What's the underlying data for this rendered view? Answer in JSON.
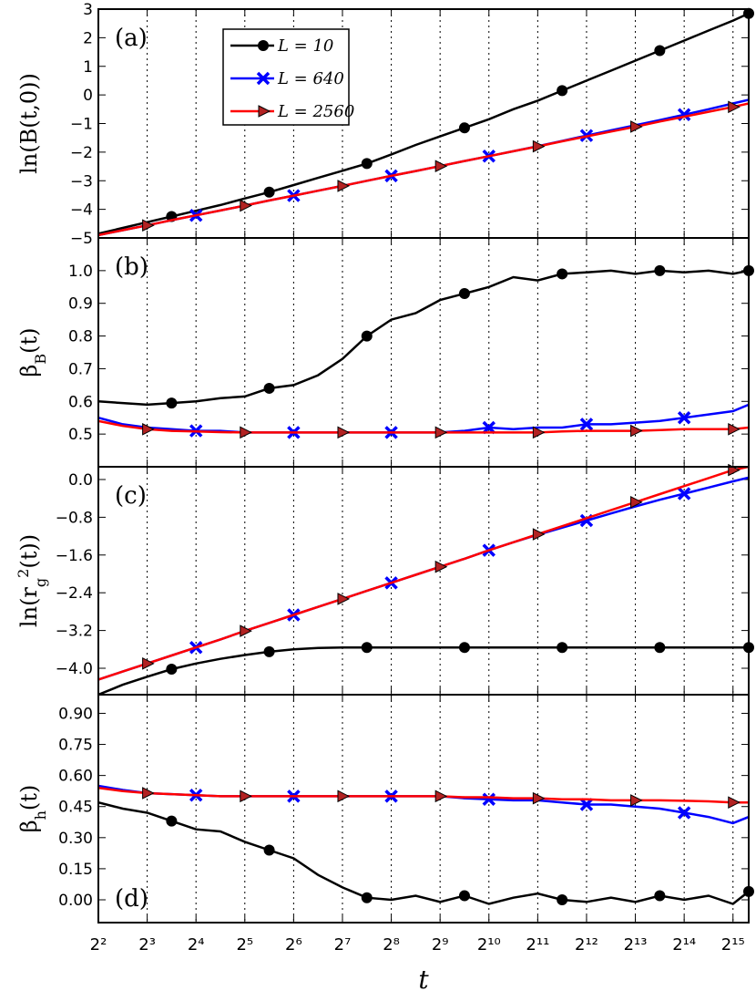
{
  "chart_data": [
    {
      "type": "line",
      "panel_label": "(a)",
      "panel_label_loc": "upper left",
      "ylabel": [
        {
          "text": "ln(B(t,0))"
        }
      ],
      "xscale": "log",
      "xlim": [
        4,
        40960
      ],
      "xticks": [
        4,
        8,
        16,
        32,
        64,
        128,
        256,
        512,
        1024,
        2048,
        4096,
        8192,
        16384,
        32768
      ],
      "grid": "x",
      "ylim": [
        -5,
        3
      ],
      "yticks": [
        {
          "value": -5,
          "label": "−5"
        },
        {
          "value": -4,
          "label": "−4"
        },
        {
          "value": -3,
          "label": "−3"
        },
        {
          "value": -2,
          "label": "−2"
        },
        {
          "value": -1,
          "label": "−1"
        },
        0,
        1,
        2,
        3
      ],
      "legend": "upper left",
      "x": [
        4,
        5.66,
        8,
        11.31,
        16,
        22.63,
        32,
        45.25,
        64,
        90.51,
        128,
        181,
        256,
        362,
        512,
        724,
        1024,
        1448,
        2048,
        2896,
        4096,
        5793,
        8192,
        11585,
        16384,
        23170,
        32768,
        40960
      ],
      "series": [
        {
          "name": "L = 10",
          "color": "#000000",
          "marker": "circle",
          "markevery": [
            3,
            4
          ],
          "values": [
            -4.85,
            -4.65,
            -4.45,
            -4.25,
            -4.05,
            -3.85,
            -3.62,
            -3.4,
            -3.15,
            -2.9,
            -2.65,
            -2.4,
            -2.08,
            -1.75,
            -1.45,
            -1.15,
            -0.85,
            -0.5,
            -0.2,
            0.15,
            0.5,
            0.85,
            1.2,
            1.55,
            1.9,
            2.25,
            2.6,
            2.85
          ]
        },
        {
          "name": "L = 640",
          "color": "#0000ff",
          "marker": "x",
          "markevery": [
            4,
            4
          ],
          "values": [
            -4.9,
            -4.73,
            -4.56,
            -4.38,
            -4.21,
            -4.04,
            -3.87,
            -3.69,
            -3.52,
            -3.35,
            -3.18,
            -3.0,
            -2.83,
            -2.66,
            -2.49,
            -2.31,
            -2.14,
            -1.97,
            -1.79,
            -1.61,
            -1.42,
            -1.24,
            -1.06,
            -0.88,
            -0.69,
            -0.5,
            -0.3,
            -0.17
          ]
        },
        {
          "name": "L = 2560",
          "color": "#ff0000",
          "marker": "triangle",
          "marker_color": "#b22222",
          "markevery": [
            2,
            4
          ],
          "values": [
            -4.9,
            -4.73,
            -4.56,
            -4.38,
            -4.21,
            -4.04,
            -3.87,
            -3.69,
            -3.52,
            -3.35,
            -3.18,
            -3.0,
            -2.83,
            -2.66,
            -2.49,
            -2.31,
            -2.14,
            -1.97,
            -1.8,
            -1.62,
            -1.45,
            -1.28,
            -1.11,
            -0.93,
            -0.76,
            -0.59,
            -0.42,
            -0.3
          ]
        }
      ]
    },
    {
      "type": "line",
      "panel_label": "(b)",
      "panel_label_loc": "upper left",
      "ylabel": [
        {
          "text": "β"
        },
        {
          "text": "B",
          "sub": true
        },
        {
          "text": "(t)"
        }
      ],
      "xscale": "log",
      "xlim": [
        4,
        40960
      ],
      "xticks": [
        4,
        8,
        16,
        32,
        64,
        128,
        256,
        512,
        1024,
        2048,
        4096,
        8192,
        16384,
        32768
      ],
      "grid": "x",
      "ylim": [
        0.4,
        1.1
      ],
      "yticks": [
        0.5,
        0.6,
        0.7,
        0.8,
        0.9,
        {
          "value": 1.0,
          "label": "1.0"
        }
      ],
      "x": [
        4,
        5.66,
        8,
        11.31,
        16,
        22.63,
        32,
        45.25,
        64,
        90.51,
        128,
        181,
        256,
        362,
        512,
        724,
        1024,
        1448,
        2048,
        2896,
        4096,
        5793,
        8192,
        11585,
        16384,
        23170,
        32768,
        40960
      ],
      "series": [
        {
          "name": "L = 10",
          "color": "#000000",
          "marker": "circle",
          "markevery": [
            3,
            4
          ],
          "values": [
            0.6,
            0.595,
            0.59,
            0.595,
            0.6,
            0.61,
            0.615,
            0.64,
            0.65,
            0.68,
            0.73,
            0.8,
            0.85,
            0.87,
            0.91,
            0.93,
            0.95,
            0.98,
            0.97,
            0.99,
            0.995,
            1.0,
            0.99,
            1.0,
            0.995,
            1.0,
            0.99,
            1.0
          ]
        },
        {
          "name": "L = 640",
          "color": "#0000ff",
          "marker": "x",
          "markevery": [
            4,
            4
          ],
          "values": [
            0.55,
            0.53,
            0.52,
            0.515,
            0.51,
            0.51,
            0.505,
            0.505,
            0.505,
            0.505,
            0.505,
            0.505,
            0.505,
            0.505,
            0.505,
            0.51,
            0.52,
            0.515,
            0.52,
            0.52,
            0.53,
            0.53,
            0.535,
            0.54,
            0.55,
            0.56,
            0.57,
            0.59
          ]
        },
        {
          "name": "L = 2560",
          "color": "#ff0000",
          "marker": "triangle",
          "marker_color": "#b22222",
          "markevery": [
            2,
            4
          ],
          "values": [
            0.54,
            0.525,
            0.515,
            0.51,
            0.508,
            0.506,
            0.505,
            0.505,
            0.505,
            0.505,
            0.505,
            0.505,
            0.505,
            0.505,
            0.505,
            0.505,
            0.505,
            0.505,
            0.505,
            0.508,
            0.51,
            0.51,
            0.51,
            0.512,
            0.515,
            0.515,
            0.515,
            0.52
          ]
        }
      ]
    },
    {
      "type": "line",
      "panel_label": "(c)",
      "panel_label_loc": "upper left",
      "ylabel": [
        {
          "text": "ln(r"
        },
        {
          "text": "g",
          "sub": true
        },
        {
          "text": "2",
          "sup": true
        },
        {
          "text": "(t))"
        }
      ],
      "xscale": "log",
      "xlim": [
        4,
        40960
      ],
      "xticks": [
        4,
        8,
        16,
        32,
        64,
        128,
        256,
        512,
        1024,
        2048,
        4096,
        8192,
        16384,
        32768
      ],
      "grid": "x",
      "ylim": [
        -4.56,
        0.27
      ],
      "yticks": [
        {
          "value": -4.0,
          "label": "−4.0"
        },
        {
          "value": -3.2,
          "label": "−3.2"
        },
        {
          "value": -2.4,
          "label": "−2.4"
        },
        {
          "value": -1.6,
          "label": "−1.6"
        },
        {
          "value": -0.8,
          "label": "−0.8"
        },
        {
          "value": 0,
          "label": "0.0"
        }
      ],
      "x": [
        4,
        5.66,
        8,
        11.31,
        16,
        22.63,
        32,
        45.25,
        64,
        90.51,
        128,
        181,
        256,
        362,
        512,
        724,
        1024,
        1448,
        2048,
        2896,
        4096,
        5793,
        8192,
        11585,
        16384,
        23170,
        32768,
        40960
      ],
      "series": [
        {
          "name": "L = 10",
          "color": "#000000",
          "marker": "circle",
          "markevery": [
            3,
            4
          ],
          "values": [
            -4.56,
            -4.35,
            -4.18,
            -4.02,
            -3.9,
            -3.8,
            -3.72,
            -3.65,
            -3.6,
            -3.57,
            -3.56,
            -3.56,
            -3.56,
            -3.56,
            -3.56,
            -3.56,
            -3.56,
            -3.56,
            -3.56,
            -3.56,
            -3.56,
            -3.56,
            -3.56,
            -3.56,
            -3.56,
            -3.56,
            -3.56,
            -3.56
          ]
        },
        {
          "name": "L = 640",
          "color": "#0000ff",
          "marker": "x",
          "markevery": [
            4,
            4
          ],
          "values": [
            -4.24,
            -4.07,
            -3.9,
            -3.73,
            -3.56,
            -3.39,
            -3.21,
            -3.04,
            -2.87,
            -2.7,
            -2.53,
            -2.36,
            -2.19,
            -2.02,
            -1.85,
            -1.68,
            -1.5,
            -1.33,
            -1.17,
            -1.02,
            -0.87,
            -0.72,
            -0.57,
            -0.43,
            -0.3,
            -0.17,
            -0.04,
            0.04
          ]
        },
        {
          "name": "L = 2560",
          "color": "#ff0000",
          "marker": "triangle",
          "marker_color": "#b22222",
          "markevery": [
            2,
            4
          ],
          "values": [
            -4.24,
            -4.07,
            -3.9,
            -3.73,
            -3.56,
            -3.39,
            -3.21,
            -3.04,
            -2.87,
            -2.7,
            -2.53,
            -2.36,
            -2.19,
            -2.02,
            -1.85,
            -1.68,
            -1.5,
            -1.33,
            -1.16,
            -0.99,
            -0.82,
            -0.65,
            -0.48,
            -0.31,
            -0.14,
            0.03,
            0.2,
            0.27
          ]
        }
      ]
    },
    {
      "type": "line",
      "panel_label": "(d)",
      "panel_label_loc": "lower left",
      "ylabel": [
        {
          "text": "β"
        },
        {
          "text": "h",
          "sub": true
        },
        {
          "text": "(t)"
        }
      ],
      "xlabel": "t",
      "xscale": "log",
      "xlim": [
        4,
        40960
      ],
      "xticks": [
        {
          "value": 4,
          "label": "2²"
        },
        {
          "value": 8,
          "label": "2³"
        },
        {
          "value": 16,
          "label": "2⁴"
        },
        {
          "value": 32,
          "label": "2⁵"
        },
        {
          "value": 64,
          "label": "2⁶"
        },
        {
          "value": 128,
          "label": "2⁷"
        },
        {
          "value": 256,
          "label": "2⁸"
        },
        {
          "value": 512,
          "label": "2⁹"
        },
        {
          "value": 1024,
          "label": "2¹⁰"
        },
        {
          "value": 2048,
          "label": "2¹¹"
        },
        {
          "value": 4096,
          "label": "2¹²"
        },
        {
          "value": 8192,
          "label": "2¹³"
        },
        {
          "value": 16384,
          "label": "2¹⁴"
        },
        {
          "value": 32768,
          "label": "2¹⁵"
        }
      ],
      "grid": "x",
      "ylim": [
        -0.11,
        0.99
      ],
      "yticks": [
        {
          "value": 0,
          "label": "0.00"
        },
        0.15,
        {
          "value": 0.3,
          "label": "0.30"
        },
        0.45,
        {
          "value": 0.6,
          "label": "0.60"
        },
        0.75,
        {
          "value": 0.9,
          "label": "0.90"
        }
      ],
      "x": [
        4,
        5.66,
        8,
        11.31,
        16,
        22.63,
        32,
        45.25,
        64,
        90.51,
        128,
        181,
        256,
        362,
        512,
        724,
        1024,
        1448,
        2048,
        2896,
        4096,
        5793,
        8192,
        11585,
        16384,
        23170,
        32768,
        40960
      ],
      "series": [
        {
          "name": "L = 10",
          "color": "#000000",
          "marker": "circle",
          "markevery": [
            3,
            4
          ],
          "values": [
            0.47,
            0.44,
            0.42,
            0.38,
            0.34,
            0.33,
            0.28,
            0.24,
            0.2,
            0.12,
            0.06,
            0.01,
            0.0,
            0.02,
            -0.01,
            0.02,
            -0.02,
            0.01,
            0.03,
            0.0,
            -0.01,
            0.01,
            -0.01,
            0.02,
            0.0,
            0.02,
            -0.02,
            0.04
          ]
        },
        {
          "name": "L = 640",
          "color": "#0000ff",
          "marker": "x",
          "markevery": [
            4,
            4
          ],
          "values": [
            0.55,
            0.53,
            0.515,
            0.51,
            0.505,
            0.5,
            0.5,
            0.5,
            0.5,
            0.5,
            0.5,
            0.5,
            0.5,
            0.5,
            0.5,
            0.49,
            0.485,
            0.48,
            0.48,
            0.47,
            0.46,
            0.46,
            0.45,
            0.44,
            0.42,
            0.4,
            0.37,
            0.4
          ]
        },
        {
          "name": "L = 2560",
          "color": "#ff0000",
          "marker": "triangle",
          "marker_color": "#b22222",
          "markevery": [
            2,
            4
          ],
          "values": [
            0.54,
            0.525,
            0.515,
            0.51,
            0.505,
            0.5,
            0.5,
            0.5,
            0.5,
            0.5,
            0.5,
            0.5,
            0.5,
            0.5,
            0.5,
            0.495,
            0.495,
            0.49,
            0.49,
            0.485,
            0.485,
            0.48,
            0.48,
            0.48,
            0.478,
            0.475,
            0.47,
            0.47
          ]
        }
      ]
    }
  ]
}
